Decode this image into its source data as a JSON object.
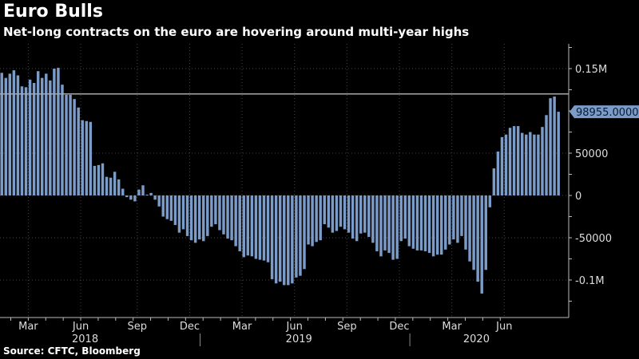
{
  "header": {
    "title": "Euro Bulls",
    "subtitle": "Net-long contracts on the euro are hovering around multi-year highs"
  },
  "footer": {
    "source": "Source: CFTC, Bloomberg"
  },
  "colors": {
    "background": "#000000",
    "bar": "#7b9cc8",
    "reference_line": "#a8a8a8",
    "axis": "#bbbbbb",
    "last_value_badge": "#7b9cc8",
    "last_value_text": "#0a1a33"
  },
  "chart_data": {
    "type": "bar",
    "title": "Euro Bulls",
    "subtitle": "Net-long contracts on the euro are hovering around multi-year highs",
    "xlabel": "",
    "ylabel": "",
    "ylim": [
      -145000,
      178000
    ],
    "grid": true,
    "y_ticks": [
      {
        "value": 150000,
        "label": "0.15M"
      },
      {
        "value": 50000,
        "label": "50000"
      },
      {
        "value": 0,
        "label": "0"
      },
      {
        "value": -50000,
        "label": "-50000"
      },
      {
        "value": -100000,
        "label": "-0.1M"
      }
    ],
    "x_month_ticks": [
      {
        "index": 7,
        "label": "Mar"
      },
      {
        "index": 20,
        "label": "Jun"
      },
      {
        "index": 34,
        "label": "Sep"
      },
      {
        "index": 47,
        "label": "Dec"
      },
      {
        "index": 60,
        "label": "Mar"
      },
      {
        "index": 73,
        "label": "Jun"
      },
      {
        "index": 86,
        "label": "Sep"
      },
      {
        "index": 99,
        "label": "Dec"
      },
      {
        "index": 112,
        "label": "Mar"
      },
      {
        "index": 125,
        "label": "Jun"
      }
    ],
    "x_year_labels": [
      {
        "index": 21,
        "label": "2018"
      },
      {
        "index": 74,
        "label": "2019"
      },
      {
        "index": 118,
        "label": "2020"
      }
    ],
    "year_dividers": [
      49.5,
      101.5
    ],
    "reference_line": {
      "value": 120000
    },
    "last_value": {
      "value": 98955.0,
      "label": "98955.0000"
    },
    "values": [
      145000,
      139000,
      144000,
      148000,
      142000,
      129000,
      128000,
      137000,
      133000,
      147000,
      139000,
      144000,
      136000,
      150000,
      151000,
      131000,
      119000,
      119000,
      114000,
      104000,
      89000,
      88000,
      87000,
      35000,
      36000,
      38000,
      22000,
      21000,
      28000,
      19000,
      8000,
      -2000,
      -5000,
      -7000,
      7000,
      12000,
      1000,
      3000,
      -5000,
      -13000,
      -25000,
      -28000,
      -30000,
      -35000,
      -44000,
      -40000,
      -48000,
      -53000,
      -56000,
      -52000,
      -54000,
      -48000,
      -37000,
      -34000,
      -41000,
      -46000,
      -51000,
      -53000,
      -60000,
      -66000,
      -73000,
      -71000,
      -72000,
      -75000,
      -76000,
      -77000,
      -79000,
      -99000,
      -104000,
      -102000,
      -106000,
      -106000,
      -104000,
      -97000,
      -95000,
      -87000,
      -58000,
      -60000,
      -55000,
      -53000,
      -34000,
      -38000,
      -44000,
      -42000,
      -37000,
      -40000,
      -44000,
      -51000,
      -54000,
      -45000,
      -44000,
      -49000,
      -56000,
      -66000,
      -72000,
      -65000,
      -68000,
      -76000,
      -75000,
      -54000,
      -51000,
      -60000,
      -63000,
      -65000,
      -65000,
      -66000,
      -68000,
      -72000,
      -70000,
      -70000,
      -64000,
      -58000,
      -52000,
      -56000,
      -48000,
      -64000,
      -78000,
      -88000,
      -102000,
      -116000,
      -88000,
      -14000,
      32000,
      52000,
      69000,
      72000,
      80000,
      82000,
      82000,
      74000,
      72000,
      75000,
      72000,
      72000,
      81000,
      95000,
      115000,
      117000,
      98955
    ]
  }
}
